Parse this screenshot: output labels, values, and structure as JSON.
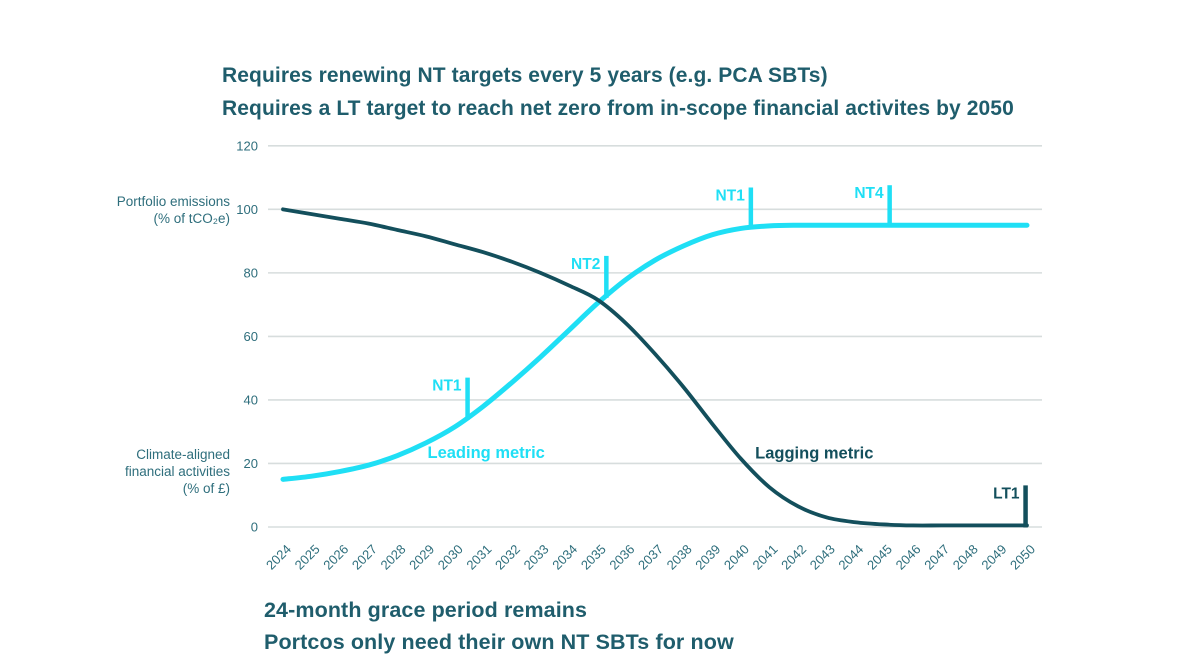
{
  "title": {
    "line1": "Requires renewing NT targets every 5 years (e.g. PCA SBTs)",
    "line2": "Requires a LT target to reach net zero from in-scope financial activites by 2050"
  },
  "footer": {
    "line1": "24-month grace period remains",
    "line2": "Portcos only need their own NT SBTs for now"
  },
  "colors": {
    "title_text": "#1f5d6c",
    "axis_text": "#2e6e7c",
    "gridline": "#d7dddd",
    "leading_cyan": "#1fdff5",
    "lagging_dark": "#134f5c"
  },
  "chart_data": {
    "type": "line",
    "x": [
      2024,
      2025,
      2026,
      2027,
      2028,
      2029,
      2030,
      2031,
      2032,
      2033,
      2034,
      2035,
      2036,
      2037,
      2038,
      2039,
      2040,
      2041,
      2042,
      2043,
      2044,
      2045,
      2046,
      2047,
      2048,
      2049,
      2050
    ],
    "ylim": [
      0,
      120
    ],
    "yticks": [
      0,
      20,
      40,
      60,
      80,
      100,
      120
    ],
    "grid": "horizontal",
    "series": [
      {
        "name": "Leading metric",
        "axis_label": [
          "Climate-aligned",
          "financial activities",
          "(% of £)"
        ],
        "color": "#1fdff5",
        "values": [
          15,
          16,
          17.5,
          19.5,
          22.5,
          26.5,
          31.5,
          38,
          45.5,
          53.5,
          62,
          70.5,
          78,
          84,
          88.5,
          92,
          94,
          94.8,
          95,
          95,
          95,
          95,
          95,
          95,
          95,
          95,
          95
        ]
      },
      {
        "name": "Lagging metric",
        "axis_label": [
          "Portfolio emissions",
          "(% of tCO₂e)"
        ],
        "color": "#134f5c",
        "values": [
          100,
          98.5,
          97,
          95.5,
          93.5,
          91.5,
          89,
          86.5,
          83.5,
          80,
          76,
          71.5,
          64,
          54.5,
          44,
          32.5,
          21.5,
          12.5,
          6.5,
          3,
          1.5,
          0.8,
          0.5,
          0.5,
          0.5,
          0.5,
          0.5
        ]
      }
    ],
    "markers": [
      {
        "label": "NT1",
        "series": 0,
        "year": 2030.45
      },
      {
        "label": "NT2",
        "series": 0,
        "year": 2035.3
      },
      {
        "label": "NT1",
        "series": 0,
        "year": 2040.35
      },
      {
        "label": "NT4",
        "series": 0,
        "year": 2045.2
      },
      {
        "label": "LT1",
        "series": 1,
        "year": 2049.95
      }
    ],
    "annotations": [
      {
        "text": "Leading metric",
        "series": 0,
        "year": 2029.05,
        "value": 21.7
      },
      {
        "text": "Lagging metric",
        "series": 1,
        "year": 2040.5,
        "value": 21.5
      }
    ]
  }
}
